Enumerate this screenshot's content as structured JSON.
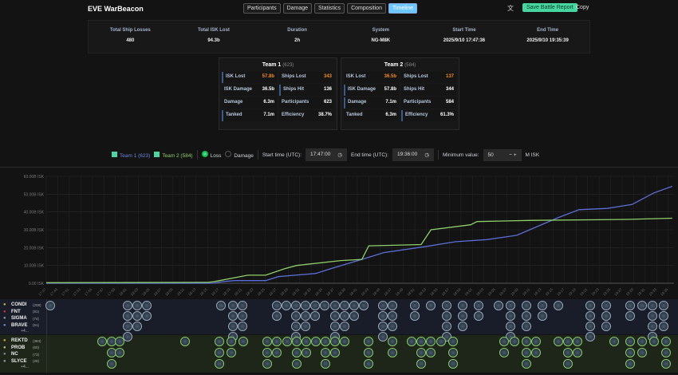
{
  "header": {
    "title": "EVE WarBeacon",
    "tabs": [
      "Participants",
      "Damage",
      "Statistics",
      "Composition",
      "Timeline"
    ],
    "active_tab": "Timeline",
    "save_label": "Save Battle Report",
    "copy_label": "Copy",
    "translate_icon": "translate-icon"
  },
  "summary": [
    {
      "label": "Total Ship Losses",
      "value": "480"
    },
    {
      "label": "Total ISK Lost",
      "value": "94.3b"
    },
    {
      "label": "Duration",
      "value": "2h"
    },
    {
      "label": "System",
      "value": "NG-M8K"
    },
    {
      "label": "Start Time",
      "value": "2025/9/10 17:47:36"
    },
    {
      "label": "End Time",
      "value": "2025/9/10 19:35:39"
    }
  ],
  "teams": [
    {
      "name": "Team 1",
      "count": "(623)",
      "stats": [
        [
          "ISK Lost",
          "57.8b"
        ],
        [
          "Ships Lost",
          "343"
        ],
        [
          "ISK Damage",
          "36.5b"
        ],
        [
          "Ships Hit",
          "136"
        ],
        [
          "Damage",
          "6.3m"
        ],
        [
          "Participants",
          "623"
        ],
        [
          "Tanked",
          "7.1m"
        ],
        [
          "Efficiency",
          "38.7%"
        ]
      ]
    },
    {
      "name": "Team 2",
      "count": "(584)",
      "stats": [
        [
          "ISK Lost",
          "36.5b"
        ],
        [
          "Ships Lost",
          "137"
        ],
        [
          "ISK Damage",
          "57.8b"
        ],
        [
          "Ships Hit",
          "344"
        ],
        [
          "Damage",
          "7.1m"
        ],
        [
          "Participants",
          "584"
        ],
        [
          "Tanked",
          "6.3m"
        ],
        [
          "Efficiency",
          "61.3%"
        ]
      ]
    }
  ],
  "filters": {
    "team1": "Team 1 (623)",
    "team2": "Team 2 (584)",
    "mode_loss": "Loss",
    "mode_damage": "Damage",
    "mode_selected": "Loss",
    "start_label": "Start time (UTC):",
    "start_value": "17:47:00",
    "end_label": "End time (UTC):",
    "end_value": "19:36:00",
    "min_label": "Minimum value:",
    "min_value": "50",
    "unit": "M ISK"
  },
  "colors": {
    "team1": "#5b6fd6",
    "team2": "#8fcf6a",
    "accent": "#4fd3a0",
    "orange": "#f08a24"
  },
  "chart_data": {
    "type": "line",
    "ylabel": "",
    "xlabel": "",
    "ylim": [
      0,
      60
    ],
    "yticks": [
      "0.00 ISK",
      "10.00B ISK",
      "20.00B ISK",
      "30.00B ISK",
      "40.00B ISK",
      "50.00B ISK",
      "60.00B ISK"
    ],
    "xlim": [
      "17:47:00",
      "19:36:00"
    ],
    "grid": true,
    "series": [
      {
        "team": "team1",
        "points": [
          [
            "17:47:00",
            0
          ],
          [
            "18:16:00",
            0
          ],
          [
            "18:17:36",
            0.9
          ],
          [
            "18:19:42",
            1.5
          ],
          [
            "18:25:06",
            1.5
          ],
          [
            "18:27:18",
            3.7
          ],
          [
            "18:33:48",
            5.5
          ],
          [
            "18:36:24",
            8.2
          ],
          [
            "18:41:48",
            13.4
          ],
          [
            "18:45:36",
            17.2
          ],
          [
            "18:52:42",
            20.5
          ],
          [
            "18:58:00",
            23.3
          ],
          [
            "19:03:30",
            24.5
          ],
          [
            "19:08:42",
            26.9
          ],
          [
            "19:15:48",
            36.7
          ],
          [
            "19:19:30",
            41.3
          ],
          [
            "19:24:24",
            42
          ],
          [
            "19:28:42",
            44.2
          ],
          [
            "19:32:30",
            50.7
          ],
          [
            "19:35:42",
            54.4
          ]
        ]
      },
      {
        "team": "team2",
        "points": [
          [
            "17:47:00",
            0.3
          ],
          [
            "18:15:00",
            0.5
          ],
          [
            "18:16:00",
            0.8
          ],
          [
            "18:22:00",
            4.5
          ],
          [
            "18:25:06",
            4.5
          ],
          [
            "18:28:24",
            8.2
          ],
          [
            "18:30:30",
            10
          ],
          [
            "18:38:06",
            12.7
          ],
          [
            "18:41:48",
            13.4
          ],
          [
            "18:43:00",
            21
          ],
          [
            "18:52:06",
            21.7
          ],
          [
            "18:53:48",
            30
          ],
          [
            "19:00:42",
            32.8
          ],
          [
            "19:01:48",
            34.6
          ],
          [
            "19:11:30",
            35.3
          ],
          [
            "19:27:42",
            35.8
          ],
          [
            "19:35:42",
            36.5
          ]
        ]
      }
    ]
  },
  "timeline": {
    "team1_alliances": [
      {
        "name": "CONDI",
        "count": "(208)",
        "icon": "condi-logo-icon"
      },
      {
        "name": "FNT",
        "count": "(81)",
        "icon": "fnt-logo-icon"
      },
      {
        "name": "SIGMA",
        "count": "(74)",
        "icon": "sigma-logo-icon"
      },
      {
        "name": "BRAVE",
        "count": "(61)",
        "icon": "brave-logo-icon"
      }
    ],
    "team2_alliances": [
      {
        "name": "REKTD",
        "count": "(384)",
        "icon": "rektd-logo-icon"
      },
      {
        "name": "PROB",
        "count": "(60)",
        "icon": "prob-logo-icon"
      },
      {
        "name": "NC",
        "count": "(73)",
        "icon": "nc-logo-icon"
      },
      {
        "name": "SLYCE",
        "count": "(28)",
        "icon": "slyce-logo-icon"
      }
    ],
    "more_label": "+4..."
  }
}
